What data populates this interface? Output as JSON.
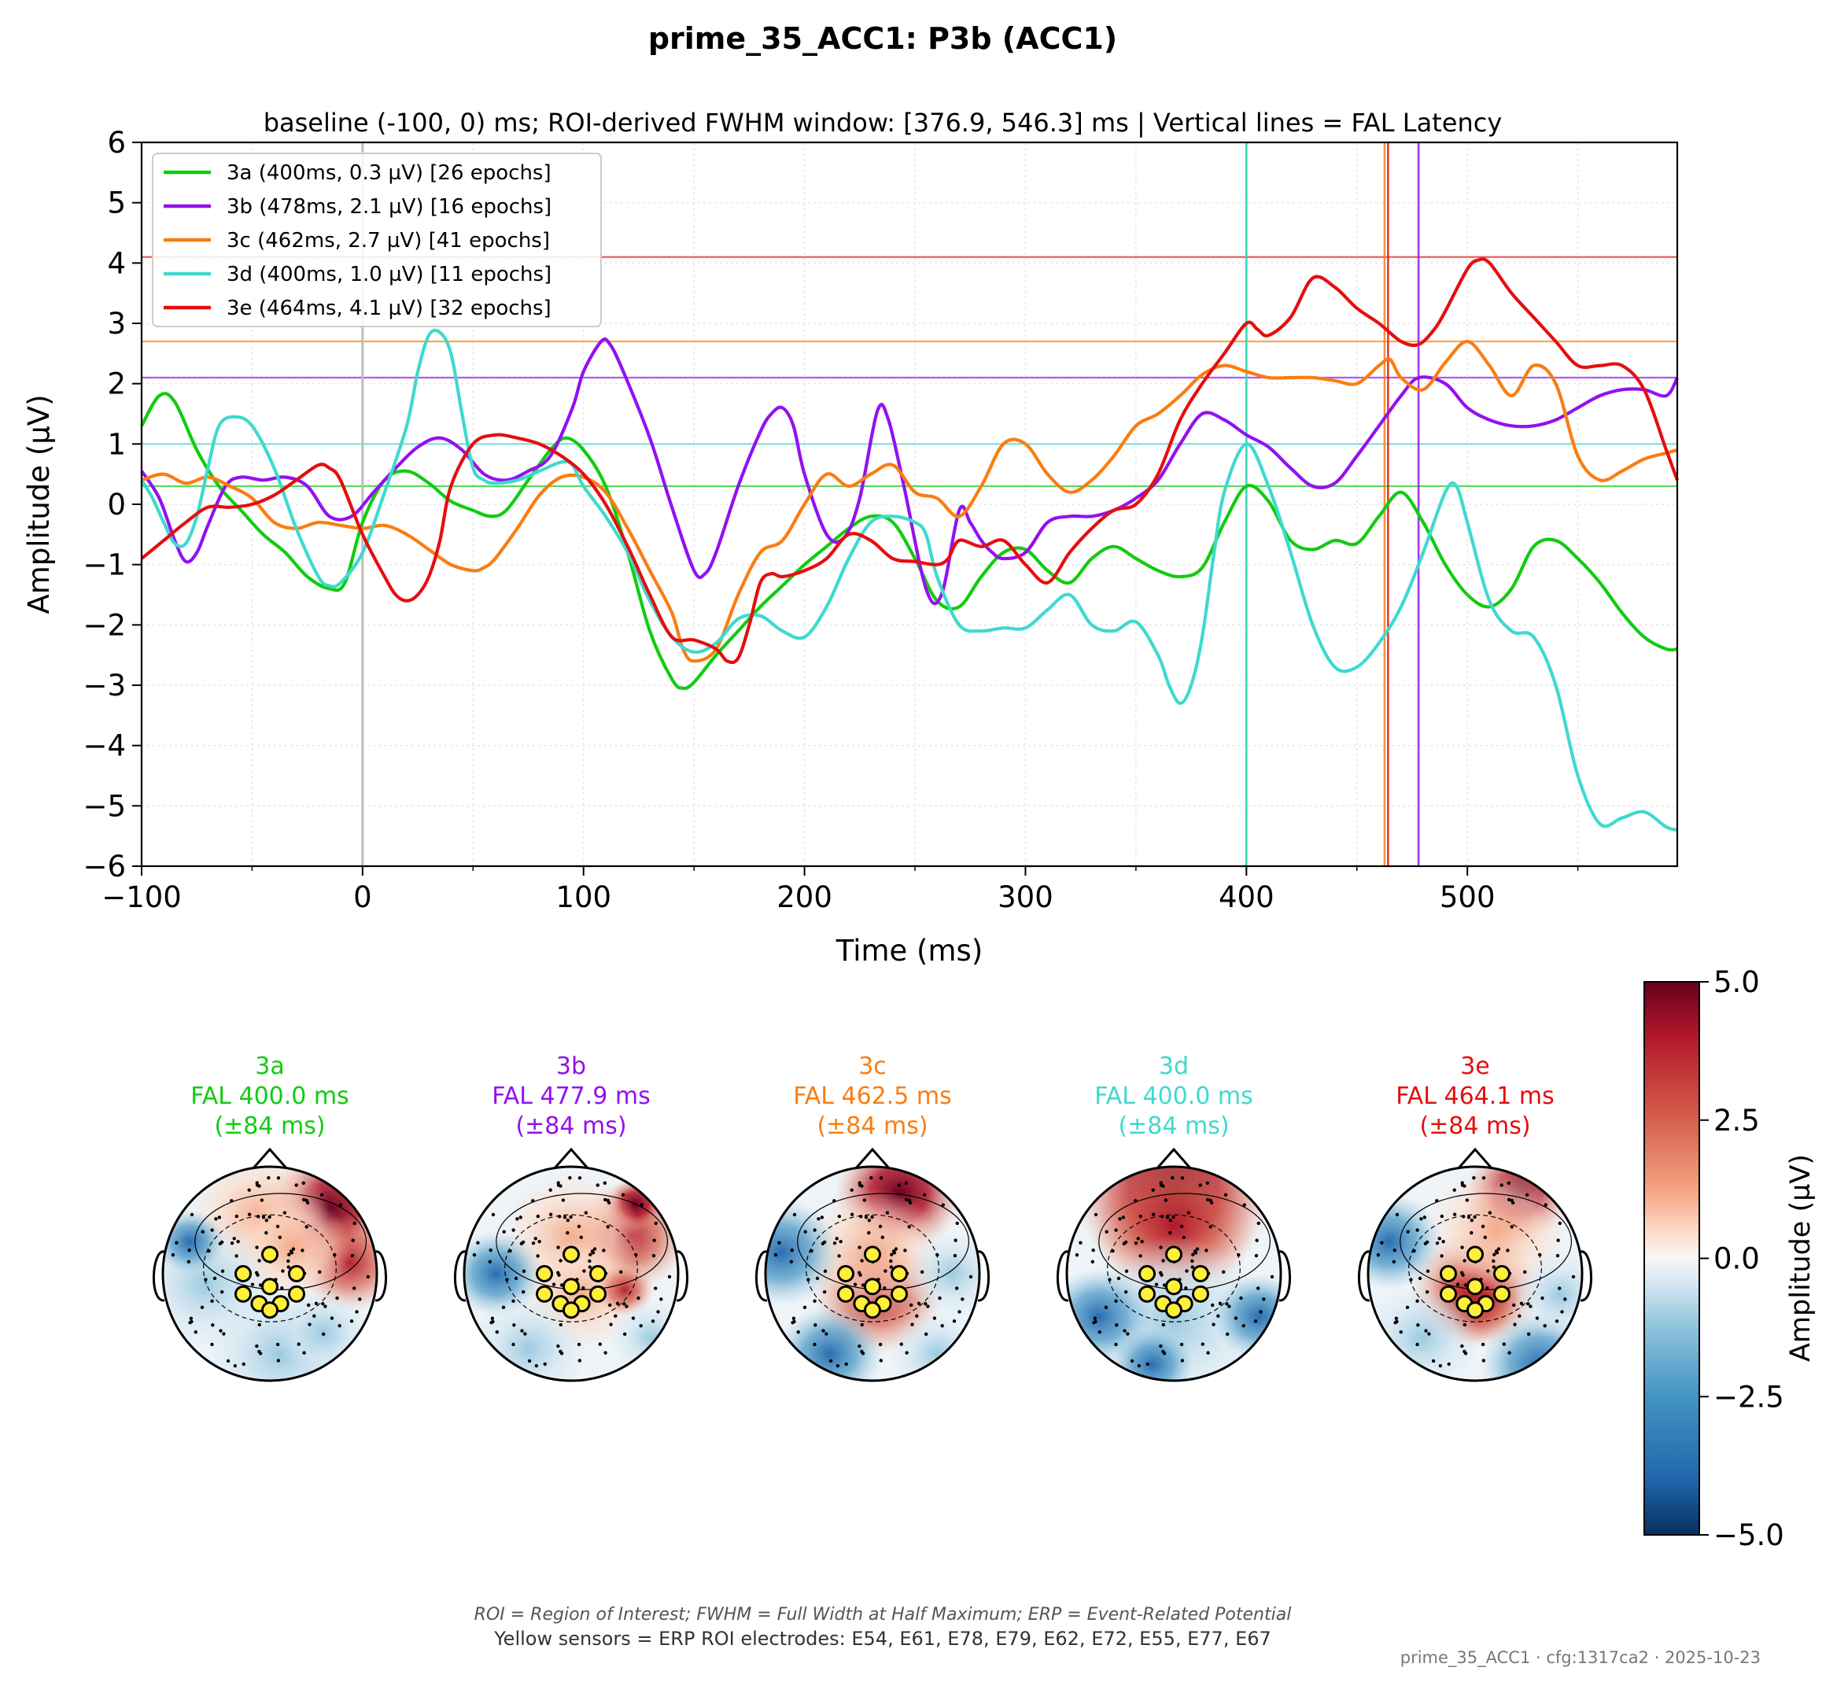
{
  "suptitle": "prime_35_ACC1: P3b (ACC1)",
  "colors": {
    "3a": "#11cc11",
    "3b": "#9311f0",
    "3c": "#fa7d12",
    "3d": "#3fd9cf",
    "3e": "#e60e0e",
    "zero_line": "#bdbdbd",
    "axis": "#000000",
    "grid": "#e6e6e6"
  },
  "chart_data": [
    {
      "type": "line",
      "title": "baseline (-100, 0) ms; ROI-derived FWHM window: [376.9, 546.3] ms | Vertical lines = FAL Latency",
      "xlabel": "Time (ms)",
      "ylabel": "Amplitude (µV)",
      "xlim": [
        -100,
        595
      ],
      "ylim": [
        -6,
        6
      ],
      "xticks": [
        -100,
        0,
        100,
        200,
        300,
        400,
        500
      ],
      "xtick_labels": [
        "−100",
        "0",
        "100",
        "200",
        "300",
        "400",
        "500"
      ],
      "yticks": [
        -6,
        -5,
        -4,
        -3,
        -2,
        -1,
        0,
        1,
        2,
        3,
        4,
        5,
        6
      ],
      "ytick_labels": [
        "−6",
        "−5",
        "−4",
        "−3",
        "−2",
        "−1",
        "0",
        "1",
        "2",
        "3",
        "4",
        "5",
        "6"
      ],
      "grid": true,
      "legend_position": "top-left",
      "series": [
        {
          "key": "3a",
          "name": "3a (400ms, 0.3 µV) [26 epochs]",
          "fal_latency": 400,
          "fal_amplitude": 0.3,
          "x": [
            -100,
            -92,
            -85,
            -75,
            -65,
            -55,
            -45,
            -35,
            -25,
            -15,
            -8,
            0,
            10,
            20,
            30,
            40,
            50,
            58,
            65,
            75,
            85,
            92,
            100,
            110,
            120,
            130,
            140,
            145,
            150,
            160,
            170,
            180,
            190,
            200,
            210,
            220,
            230,
            240,
            250,
            260,
            270,
            280,
            290,
            300,
            310,
            320,
            330,
            340,
            350,
            360,
            370,
            380,
            390,
            400,
            410,
            420,
            430,
            440,
            450,
            460,
            470,
            480,
            490,
            500,
            510,
            520,
            530,
            540,
            550,
            560,
            570,
            580,
            590,
            595
          ],
          "y": [
            1.3,
            1.8,
            1.7,
            0.9,
            0.3,
            -0.1,
            -0.5,
            -0.8,
            -1.2,
            -1.4,
            -1.3,
            -0.3,
            0.4,
            0.55,
            0.35,
            0.05,
            -0.1,
            -0.2,
            -0.1,
            0.4,
            0.9,
            1.1,
            0.9,
            0.3,
            -0.8,
            -2.1,
            -2.9,
            -3.05,
            -2.95,
            -2.5,
            -2.1,
            -1.7,
            -1.35,
            -1.0,
            -0.7,
            -0.4,
            -0.2,
            -0.3,
            -0.9,
            -1.6,
            -1.7,
            -1.2,
            -0.8,
            -0.75,
            -1.1,
            -1.3,
            -0.9,
            -0.7,
            -0.9,
            -1.1,
            -1.2,
            -1.05,
            -0.3,
            0.3,
            0.05,
            -0.6,
            -0.75,
            -0.6,
            -0.65,
            -0.2,
            0.2,
            -0.3,
            -1.0,
            -1.5,
            -1.7,
            -1.4,
            -0.7,
            -0.6,
            -0.9,
            -1.3,
            -1.8,
            -2.2,
            -2.4,
            -2.4
          ]
        },
        {
          "key": "3b",
          "name": "3b (478ms, 2.1 µV) [16 epochs]",
          "fal_latency": 477.9,
          "fal_amplitude": 2.1,
          "x": [
            -100,
            -92,
            -85,
            -80,
            -75,
            -70,
            -62,
            -55,
            -45,
            -35,
            -25,
            -15,
            -5,
            5,
            15,
            25,
            35,
            45,
            55,
            65,
            75,
            85,
            95,
            100,
            108,
            112,
            118,
            130,
            140,
            150,
            155,
            160,
            170,
            180,
            185,
            190,
            195,
            200,
            210,
            218,
            225,
            233,
            238,
            245,
            255,
            262,
            270,
            275,
            280,
            285,
            290,
            300,
            310,
            320,
            330,
            340,
            350,
            360,
            370,
            380,
            390,
            400,
            410,
            420,
            430,
            440,
            450,
            460,
            470,
            478,
            490,
            500,
            510,
            520,
            530,
            540,
            550,
            560,
            570,
            580,
            590,
            595
          ],
          "y": [
            0.55,
            0.1,
            -0.6,
            -0.95,
            -0.8,
            -0.35,
            0.3,
            0.45,
            0.4,
            0.45,
            0.3,
            -0.2,
            -0.2,
            0.2,
            0.6,
            0.95,
            1.1,
            0.9,
            0.5,
            0.4,
            0.55,
            0.8,
            1.6,
            2.2,
            2.7,
            2.65,
            2.2,
            1.1,
            -0.05,
            -1.1,
            -1.15,
            -0.8,
            0.3,
            1.2,
            1.5,
            1.6,
            1.3,
            0.5,
            -0.5,
            -0.55,
            0.1,
            1.55,
            1.4,
            0.3,
            -1.4,
            -1.5,
            -0.1,
            -0.3,
            -0.6,
            -0.8,
            -0.9,
            -0.8,
            -0.3,
            -0.2,
            -0.2,
            -0.1,
            0.1,
            0.4,
            1.0,
            1.5,
            1.4,
            1.15,
            0.95,
            0.6,
            0.3,
            0.35,
            0.8,
            1.3,
            1.8,
            2.1,
            2.0,
            1.6,
            1.4,
            1.3,
            1.3,
            1.4,
            1.6,
            1.8,
            1.9,
            1.9,
            1.8,
            2.1
          ]
        },
        {
          "key": "3c",
          "name": "3c (462ms, 2.7 µV) [41 epochs]",
          "fal_latency": 462.5,
          "fal_amplitude": 2.7,
          "x": [
            -100,
            -90,
            -80,
            -70,
            -60,
            -50,
            -40,
            -30,
            -20,
            -10,
            0,
            10,
            20,
            30,
            40,
            50,
            55,
            60,
            70,
            80,
            90,
            100,
            110,
            120,
            130,
            140,
            145,
            150,
            160,
            170,
            180,
            190,
            200,
            210,
            220,
            230,
            240,
            250,
            260,
            270,
            280,
            290,
            300,
            310,
            320,
            330,
            340,
            350,
            360,
            370,
            380,
            390,
            400,
            410,
            420,
            430,
            440,
            450,
            460,
            465,
            470,
            480,
            490,
            500,
            510,
            520,
            530,
            540,
            550,
            560,
            570,
            580,
            590,
            595
          ],
          "y": [
            0.4,
            0.5,
            0.35,
            0.45,
            0.3,
            0.1,
            -0.3,
            -0.4,
            -0.3,
            -0.35,
            -0.4,
            -0.35,
            -0.5,
            -0.75,
            -1.0,
            -1.1,
            -1.05,
            -0.9,
            -0.4,
            0.15,
            0.45,
            0.45,
            0.2,
            -0.4,
            -1.1,
            -1.8,
            -2.4,
            -2.6,
            -2.4,
            -1.5,
            -0.8,
            -0.6,
            0.0,
            0.5,
            0.3,
            0.5,
            0.65,
            0.2,
            0.1,
            -0.2,
            0.3,
            1.0,
            1.0,
            0.5,
            0.2,
            0.4,
            0.8,
            1.3,
            1.5,
            1.8,
            2.15,
            2.3,
            2.2,
            2.1,
            2.1,
            2.1,
            2.05,
            2.0,
            2.3,
            2.4,
            2.1,
            1.9,
            2.35,
            2.7,
            2.3,
            1.8,
            2.3,
            2.0,
            0.8,
            0.4,
            0.55,
            0.75,
            0.85,
            0.9
          ]
        },
        {
          "key": "3d",
          "name": "3d (400ms, 1.0 µV) [11 epochs]",
          "fal_latency": 400,
          "fal_amplitude": 1.0,
          "x": [
            -100,
            -95,
            -90,
            -85,
            -80,
            -75,
            -70,
            -65,
            -58,
            -50,
            -40,
            -30,
            -20,
            -15,
            -10,
            0,
            10,
            20,
            25,
            30,
            35,
            40,
            45,
            50,
            55,
            60,
            70,
            80,
            90,
            95,
            100,
            110,
            120,
            130,
            140,
            150,
            160,
            170,
            180,
            190,
            200,
            210,
            220,
            230,
            240,
            250,
            255,
            260,
            270,
            280,
            290,
            300,
            310,
            320,
            330,
            340,
            350,
            360,
            365,
            370,
            375,
            380,
            385,
            390,
            400,
            410,
            420,
            430,
            440,
            450,
            460,
            470,
            480,
            490,
            495,
            500,
            510,
            520,
            530,
            540,
            550,
            560,
            570,
            580,
            590,
            595
          ],
          "y": [
            0.4,
            0.1,
            -0.3,
            -0.65,
            -0.65,
            -0.2,
            0.6,
            1.3,
            1.45,
            1.3,
            0.6,
            -0.4,
            -1.2,
            -1.35,
            -1.3,
            -0.8,
            0.2,
            1.3,
            2.2,
            2.8,
            2.85,
            2.5,
            1.5,
            0.6,
            0.4,
            0.35,
            0.4,
            0.55,
            0.7,
            0.65,
            0.3,
            -0.2,
            -0.8,
            -1.6,
            -2.2,
            -2.45,
            -2.3,
            -1.9,
            -1.85,
            -2.1,
            -2.2,
            -1.7,
            -0.9,
            -0.3,
            -0.2,
            -0.3,
            -0.5,
            -1.2,
            -2.0,
            -2.1,
            -2.05,
            -2.05,
            -1.75,
            -1.5,
            -2.0,
            -2.1,
            -1.95,
            -2.5,
            -3.0,
            -3.3,
            -3.0,
            -2.2,
            -0.9,
            0.2,
            1.0,
            0.3,
            -0.8,
            -2.0,
            -2.7,
            -2.7,
            -2.3,
            -1.7,
            -0.8,
            0.2,
            0.3,
            -0.3,
            -1.6,
            -2.1,
            -2.2,
            -3.0,
            -4.5,
            -5.3,
            -5.2,
            -5.1,
            -5.35,
            -5.4
          ]
        },
        {
          "key": "3e",
          "name": "3e (464ms, 4.1 µV) [32 epochs]",
          "fal_latency": 464.1,
          "fal_amplitude": 4.1,
          "x": [
            -100,
            -90,
            -80,
            -70,
            -60,
            -50,
            -40,
            -30,
            -20,
            -15,
            -10,
            0,
            10,
            15,
            20,
            25,
            30,
            35,
            40,
            50,
            60,
            70,
            80,
            90,
            100,
            110,
            120,
            130,
            140,
            150,
            160,
            165,
            170,
            175,
            180,
            185,
            190,
            200,
            210,
            220,
            230,
            240,
            250,
            260,
            265,
            270,
            280,
            290,
            300,
            310,
            320,
            330,
            340,
            350,
            360,
            370,
            380,
            390,
            400,
            405,
            410,
            420,
            430,
            440,
            450,
            460,
            470,
            478,
            485,
            490,
            500,
            505,
            510,
            520,
            530,
            540,
            550,
            560,
            570,
            580,
            590,
            595
          ],
          "y": [
            -0.9,
            -0.6,
            -0.3,
            -0.05,
            -0.05,
            0.0,
            0.15,
            0.4,
            0.65,
            0.6,
            0.4,
            -0.5,
            -1.2,
            -1.5,
            -1.6,
            -1.5,
            -1.2,
            -0.6,
            0.3,
            1.0,
            1.15,
            1.1,
            1.0,
            0.8,
            0.5,
            0.0,
            -0.7,
            -1.5,
            -2.2,
            -2.25,
            -2.4,
            -2.6,
            -2.55,
            -2.0,
            -1.3,
            -1.15,
            -1.2,
            -1.1,
            -0.9,
            -0.5,
            -0.6,
            -0.9,
            -0.95,
            -1.0,
            -0.9,
            -0.6,
            -0.7,
            -0.6,
            -1.0,
            -1.3,
            -0.8,
            -0.4,
            -0.1,
            0.0,
            0.5,
            1.4,
            2.0,
            2.5,
            3.0,
            2.9,
            2.8,
            3.1,
            3.75,
            3.6,
            3.25,
            3.0,
            2.7,
            2.65,
            2.9,
            3.2,
            3.9,
            4.05,
            4.0,
            3.5,
            3.1,
            2.7,
            2.3,
            2.3,
            2.3,
            1.9,
            0.9,
            0.4
          ]
        }
      ],
      "horizontal_lines": [
        {
          "key": "3a",
          "y": 0.3
        },
        {
          "key": "3b",
          "y": 2.1
        },
        {
          "key": "3c",
          "y": 2.7
        },
        {
          "key": "3d",
          "y": 1.0
        },
        {
          "key": "3e",
          "y": 4.1
        }
      ],
      "vertical_lines": [
        {
          "key": "zero",
          "x": 0
        },
        {
          "key": "3a",
          "x": 400
        },
        {
          "key": "3d",
          "x": 400
        },
        {
          "key": "3c",
          "x": 462.5
        },
        {
          "key": "3e",
          "x": 464.1
        },
        {
          "key": "3b",
          "x": 477.9
        }
      ]
    },
    {
      "type": "heatmap",
      "subtype": "scalp topography",
      "colormap": "RdBu_r",
      "vmin": -5.0,
      "vmax": 5.0,
      "colorbar_label": "Amplitude (µV)",
      "colorbar_ticks": [
        5.0,
        2.5,
        0.0,
        -2.5,
        -5.0
      ],
      "colorbar_tick_labels": [
        "5.0",
        "2.5",
        "0.0",
        "−2.5",
        "−5.0"
      ],
      "maps": [
        {
          "key": "3a",
          "label": "3a",
          "fal": "FAL 400.0 ms",
          "window": "(±84 ms)",
          "pattern": "frontal-right positive, posterior-left negative"
        },
        {
          "key": "3b",
          "label": "3b",
          "fal": "FAL 477.9 ms",
          "window": "(±84 ms)",
          "pattern": "right frontal positive, left lateral negative"
        },
        {
          "key": "3c",
          "label": "3c",
          "fal": "FAL 462.5 ms",
          "window": "(±84 ms)",
          "pattern": "frontal and central positive, lateral negative"
        },
        {
          "key": "3d",
          "label": "3d",
          "fal": "FAL 400.0 ms",
          "window": "(±84 ms)",
          "pattern": "strong frontal positive, posterior negative"
        },
        {
          "key": "3e",
          "label": "3e",
          "fal": "FAL 464.1 ms",
          "window": "(±84 ms)",
          "pattern": "central-parietal positive, lateral negative"
        }
      ]
    }
  ],
  "footer": {
    "abbreviations": "ROI = Region of Interest; FWHM = Full Width at Half Maximum; ERP = Event-Related Potential",
    "sensors_note": "Yellow sensors = ERP ROI electrodes: E54, E61, E78, E79, E62, E72, E55, E77, E67",
    "stamp": "prime_35_ACC1 · cfg:1317ca2 · 2025-10-23"
  }
}
